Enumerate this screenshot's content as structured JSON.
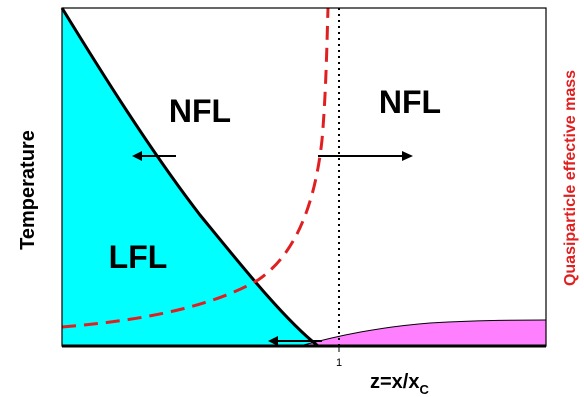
{
  "labels": {
    "nfl_left": "NFL",
    "nfl_right": "NFL",
    "lfl": "LFL",
    "y_axis_left": "Temperature",
    "y_axis_right": "Quasiparticle effective mass",
    "x_axis_main": "z=x/x",
    "x_axis_sub": "C",
    "x_tick_1": "1"
  },
  "colors": {
    "lfl_fill": "#00ffff",
    "magenta_fill": "#ff80ff",
    "mass_curve": "#e02020",
    "right_axis_label": "#e02020",
    "line": "#000000"
  }
}
